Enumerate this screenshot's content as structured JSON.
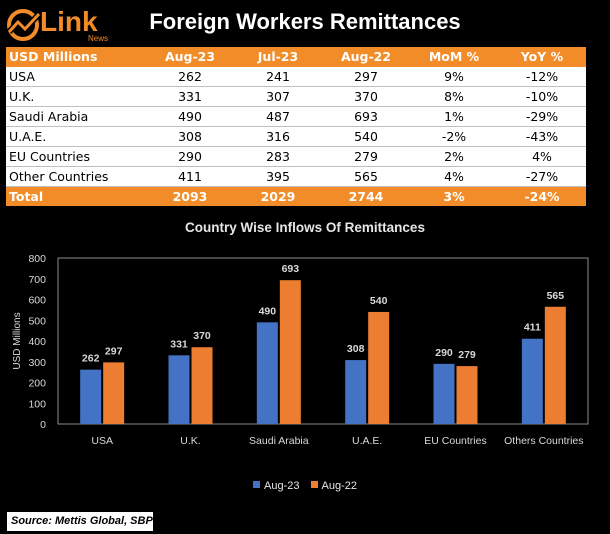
{
  "logo": {
    "text": "Link",
    "sub": "News"
  },
  "title": "Foreign Workers Remittances",
  "table": {
    "headers": [
      "USD Millions",
      "Aug-23",
      "Jul-23",
      "Aug-22",
      "MoM %",
      "YoY %"
    ],
    "rows": [
      [
        "USA",
        "262",
        "241",
        "297",
        "9%",
        "-12%"
      ],
      [
        "U.K.",
        "331",
        "307",
        "370",
        "8%",
        "-10%"
      ],
      [
        "Saudi Arabia",
        "490",
        "487",
        "693",
        "1%",
        "-29%"
      ],
      [
        "U.A.E.",
        "308",
        "316",
        "540",
        "-2%",
        "-43%"
      ],
      [
        "EU Countries",
        "290",
        "283",
        "279",
        "2%",
        "4%"
      ],
      [
        "Other Countries",
        "411",
        "395",
        "565",
        "4%",
        "-27%"
      ]
    ],
    "total": [
      "Total",
      "2093",
      "2029",
      "2744",
      "3%",
      "-24%"
    ]
  },
  "chart_data": {
    "type": "bar",
    "title": "Country Wise Inflows Of Remittances",
    "xlabel": "",
    "ylabel": "USD Millions",
    "ylim": [
      0,
      800
    ],
    "yticks": [
      0,
      100,
      200,
      300,
      400,
      500,
      600,
      700,
      800
    ],
    "categories": [
      "USA",
      "U.K.",
      "Saudi Arabia",
      "U.A.E.",
      "EU Countries",
      "Others Countries"
    ],
    "series": [
      {
        "name": "Aug-23",
        "values": [
          262,
          331,
          490,
          308,
          290,
          411
        ],
        "color": "#4472c4"
      },
      {
        "name": "Aug-22",
        "values": [
          297,
          370,
          693,
          540,
          279,
          565
        ],
        "color": "#ed7d31"
      }
    ],
    "legend": "bottom",
    "grid": false
  },
  "source": "Source: Mettis Global, SBP",
  "colors": {
    "accent": "#f28c28",
    "background": "#000000"
  }
}
